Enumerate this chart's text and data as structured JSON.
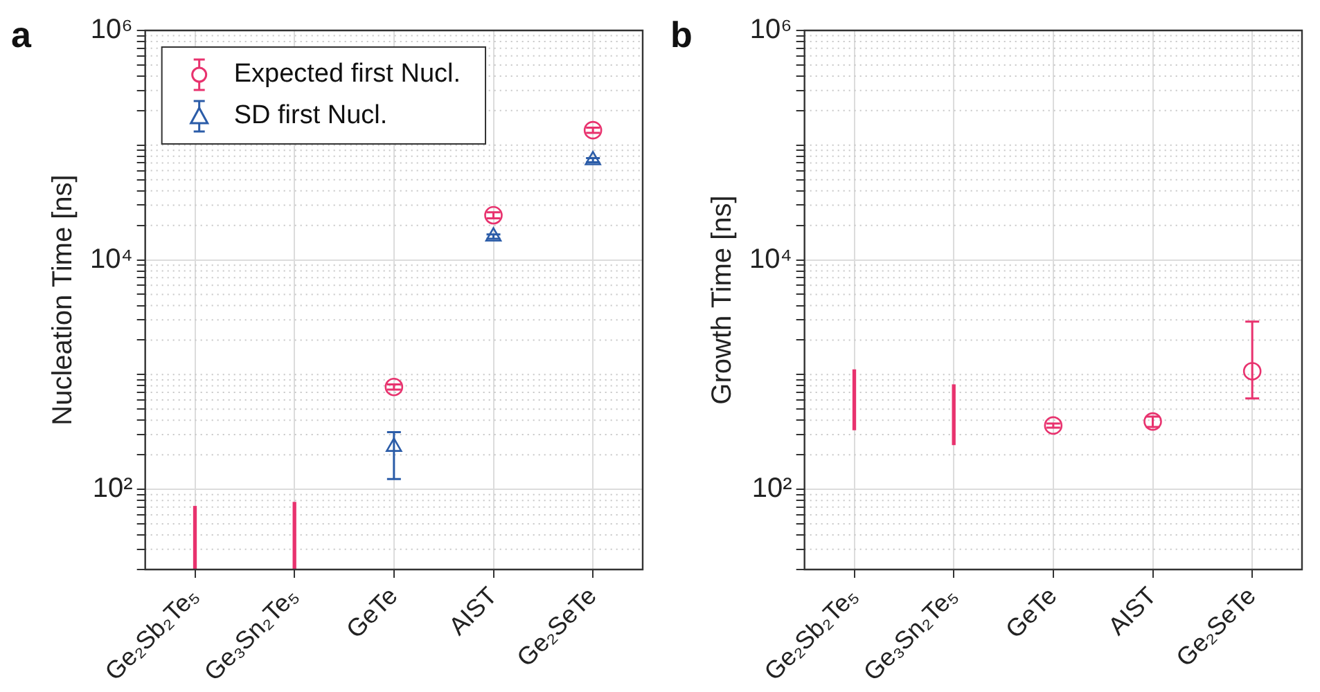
{
  "chart_data": [
    {
      "type": "scatter",
      "title": "a",
      "ylabel": "Nucleation Time [ns]",
      "categories": [
        "Ge₂Sb₂Te₅",
        "Ge₃Sn₂Te₅",
        "GeTe",
        "AIST",
        "Ge₂SeTe"
      ],
      "log": "y",
      "ylim": [
        20,
        1000000
      ],
      "yticks": [
        {
          "value": 20,
          "label": null
        },
        {
          "value": 30,
          "label": null
        },
        {
          "value": 40,
          "label": null
        },
        {
          "value": 50,
          "label": null
        },
        {
          "value": 60,
          "label": null
        },
        {
          "value": 70,
          "label": null
        },
        {
          "value": 80,
          "label": null
        },
        {
          "value": 90,
          "label": null
        },
        {
          "value": 100,
          "label": "10²"
        },
        {
          "value": 200,
          "label": null
        },
        {
          "value": 300,
          "label": null
        },
        {
          "value": 400,
          "label": null
        },
        {
          "value": 500,
          "label": null
        },
        {
          "value": 600,
          "label": null
        },
        {
          "value": 700,
          "label": null
        },
        {
          "value": 800,
          "label": null
        },
        {
          "value": 900,
          "label": null
        },
        {
          "value": 1000,
          "label": null
        },
        {
          "value": 2000,
          "label": null
        },
        {
          "value": 3000,
          "label": null
        },
        {
          "value": 4000,
          "label": null
        },
        {
          "value": 5000,
          "label": null
        },
        {
          "value": 6000,
          "label": null
        },
        {
          "value": 7000,
          "label": null
        },
        {
          "value": 8000,
          "label": null
        },
        {
          "value": 9000,
          "label": null
        },
        {
          "value": 10000,
          "label": "10⁴"
        },
        {
          "value": 20000,
          "label": null
        },
        {
          "value": 30000,
          "label": null
        },
        {
          "value": 40000,
          "label": null
        },
        {
          "value": 50000,
          "label": null
        },
        {
          "value": 60000,
          "label": null
        },
        {
          "value": 70000,
          "label": null
        },
        {
          "value": 80000,
          "label": null
        },
        {
          "value": 90000,
          "label": null
        },
        {
          "value": 100000,
          "label": null
        },
        {
          "value": 200000,
          "label": null
        },
        {
          "value": 300000,
          "label": null
        },
        {
          "value": 400000,
          "label": null
        },
        {
          "value": 500000,
          "label": null
        },
        {
          "value": 600000,
          "label": null
        },
        {
          "value": 700000,
          "label": null
        },
        {
          "value": 800000,
          "label": null
        },
        {
          "value": 900000,
          "label": null
        },
        {
          "value": 1000000,
          "label": "10⁶"
        }
      ],
      "grid": true,
      "legend": "top left",
      "series": [
        {
          "name": "Expected first Nucl.",
          "marker": "circle",
          "color": "#e8326e",
          "values": [
            null,
            null,
            780,
            24500,
            135000
          ],
          "errors": [
            null,
            null,
            [
              740,
              820
            ],
            [
              23000,
              26000
            ],
            [
              128000,
              142000
            ]
          ]
        },
        {
          "name": "SD first Nucl.",
          "marker": "triangle",
          "color": "#2b5ca8",
          "values": [
            null,
            null,
            235,
            16000,
            74000
          ],
          "errors": [
            null,
            null,
            [
              123,
              315
            ],
            [
              15300,
              16700
            ],
            [
              71000,
              77000
            ]
          ]
        },
        {
          "type": "bar",
          "color": "#e8326e",
          "base": [
            20,
            20,
            null,
            null,
            null
          ],
          "values": [
            51,
            57,
            null,
            null,
            null
          ]
        }
      ]
    },
    {
      "type": "scatter",
      "title": "b",
      "ylabel": "Growth Time [ns]",
      "categories": [
        "Ge₂Sb₂Te₅",
        "Ge₃Sn₂Te₅",
        "GeTe",
        "AIST",
        "Ge₂SeTe"
      ],
      "log": "y",
      "ylim": [
        20,
        1000000
      ],
      "yticks": [
        {
          "value": 20,
          "label": null
        },
        {
          "value": 30,
          "label": null
        },
        {
          "value": 40,
          "label": null
        },
        {
          "value": 50,
          "label": null
        },
        {
          "value": 60,
          "label": null
        },
        {
          "value": 70,
          "label": null
        },
        {
          "value": 80,
          "label": null
        },
        {
          "value": 90,
          "label": null
        },
        {
          "value": 100,
          "label": "10²"
        },
        {
          "value": 200,
          "label": null
        },
        {
          "value": 300,
          "label": null
        },
        {
          "value": 400,
          "label": null
        },
        {
          "value": 500,
          "label": null
        },
        {
          "value": 600,
          "label": null
        },
        {
          "value": 700,
          "label": null
        },
        {
          "value": 800,
          "label": null
        },
        {
          "value": 900,
          "label": null
        },
        {
          "value": 1000,
          "label": null
        },
        {
          "value": 2000,
          "label": null
        },
        {
          "value": 3000,
          "label": null
        },
        {
          "value": 4000,
          "label": null
        },
        {
          "value": 5000,
          "label": null
        },
        {
          "value": 6000,
          "label": null
        },
        {
          "value": 7000,
          "label": null
        },
        {
          "value": 8000,
          "label": null
        },
        {
          "value": 9000,
          "label": null
        },
        {
          "value": 10000,
          "label": "10⁴"
        },
        {
          "value": 20000,
          "label": null
        },
        {
          "value": 30000,
          "label": null
        },
        {
          "value": 40000,
          "label": null
        },
        {
          "value": 50000,
          "label": null
        },
        {
          "value": 60000,
          "label": null
        },
        {
          "value": 70000,
          "label": null
        },
        {
          "value": 80000,
          "label": null
        },
        {
          "value": 90000,
          "label": null
        },
        {
          "value": 100000,
          "label": null
        },
        {
          "value": 200000,
          "label": null
        },
        {
          "value": 300000,
          "label": null
        },
        {
          "value": 400000,
          "label": null
        },
        {
          "value": 500000,
          "label": null
        },
        {
          "value": 600000,
          "label": null
        },
        {
          "value": 700000,
          "label": null
        },
        {
          "value": 800000,
          "label": null
        },
        {
          "value": 900000,
          "label": null
        },
        {
          "value": 1000000,
          "label": "10⁶"
        }
      ],
      "grid": true,
      "series": [
        {
          "marker": "circle",
          "color": "#e8326e",
          "values": [
            null,
            null,
            360,
            390,
            1070
          ],
          "errors": [
            null,
            null,
            [
              345,
              375
            ],
            [
              350,
              430
            ],
            [
              620,
              2900
            ]
          ]
        },
        {
          "type": "bar",
          "color": "#e8326e",
          "base": [
            330,
            245,
            null,
            null,
            null
          ],
          "values": [
            770,
            570,
            null,
            null,
            null
          ]
        }
      ]
    }
  ]
}
